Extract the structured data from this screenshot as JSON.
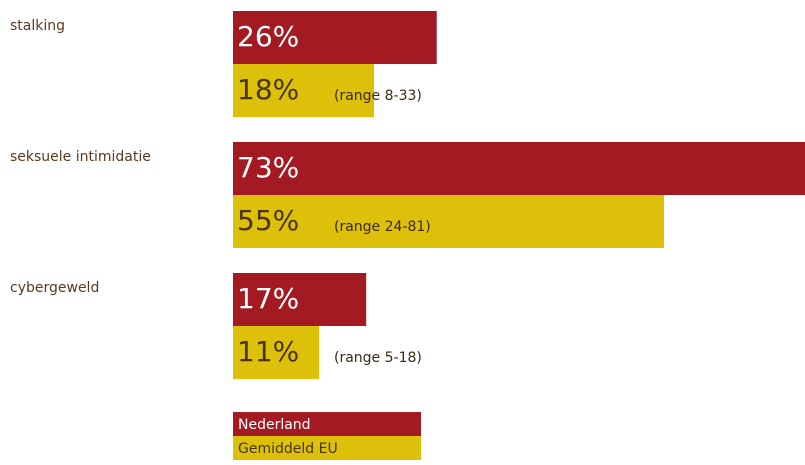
{
  "chart_data": {
    "type": "bar",
    "orientation": "horizontal",
    "categories": [
      "stalking",
      "seksuele intimidatie",
      "cybergeweld"
    ],
    "series": [
      {
        "name": "Nederland",
        "color": "#a31a22",
        "values": [
          26,
          73,
          17
        ],
        "value_labels": [
          "26%",
          "73%",
          "17%"
        ]
      },
      {
        "name": "Gemiddeld EU",
        "color": "#ddc00a",
        "values": [
          18,
          55,
          11
        ],
        "value_labels": [
          "18%",
          "55%",
          "11%"
        ]
      }
    ],
    "annotations": [
      "(range 8-33)",
      "(range 24-81)",
      "(range 5-18)"
    ]
  }
}
